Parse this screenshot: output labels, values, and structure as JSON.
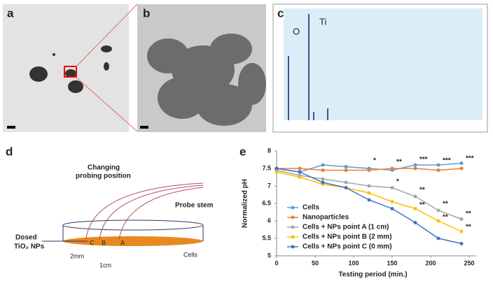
{
  "panels": {
    "a": {
      "label": "a"
    },
    "b": {
      "label": "b"
    },
    "c": {
      "label": "c",
      "peaks": [
        "O",
        "Ti"
      ]
    },
    "d": {
      "label": "d",
      "texts": [
        "Changing",
        "probing position",
        "Probe stem",
        "Dosed",
        "TiO₂ NPs",
        "C",
        "B",
        "A",
        "2mm",
        "1cm",
        "Cells"
      ]
    }
  },
  "chart_data": {
    "type": "line",
    "label": "e",
    "x_label": "Testing period (min.)",
    "y_label": "Normalized pH",
    "x": [
      0,
      30,
      60,
      90,
      120,
      150,
      180,
      210,
      240
    ],
    "xlim": [
      0,
      250
    ],
    "xticks": [
      0,
      50,
      100,
      150,
      200,
      250
    ],
    "ylim": [
      5,
      8
    ],
    "yticks": [
      5,
      5.5,
      6,
      6.5,
      7,
      7.5,
      8
    ],
    "legend": "lower left",
    "series": [
      {
        "name": "Cells",
        "color": "#5b9bd5",
        "values": [
          7.5,
          7.4,
          7.6,
          7.55,
          7.5,
          7.45,
          7.6,
          7.6,
          7.65
        ]
      },
      {
        "name": "Nanoparticles",
        "color": "#ed7d31",
        "values": [
          7.5,
          7.5,
          7.45,
          7.45,
          7.45,
          7.5,
          7.5,
          7.45,
          7.5
        ]
      },
      {
        "name": "Cells + NPs point A (1 cm)",
        "color": "#a5a5a5",
        "values": [
          7.45,
          7.3,
          7.2,
          7.1,
          7.0,
          6.95,
          6.7,
          6.3,
          6.05
        ]
      },
      {
        "name": "Cells + NPs point B (2 mm)",
        "color": "#ffc000",
        "values": [
          7.4,
          7.25,
          7.05,
          6.95,
          6.8,
          6.55,
          6.35,
          6.0,
          5.7
        ]
      },
      {
        "name": "Cells + NPs point C (0 mm)",
        "color": "#4472c4",
        "values": [
          7.5,
          7.4,
          7.1,
          6.95,
          6.6,
          6.35,
          5.95,
          5.5,
          5.35
        ]
      }
    ],
    "annotations": [
      {
        "text": "*",
        "x": 120,
        "y": 7.72
      },
      {
        "text": "**",
        "x": 150,
        "y": 7.68
      },
      {
        "text": "***",
        "x": 180,
        "y": 7.75
      },
      {
        "text": "***",
        "x": 210,
        "y": 7.72
      },
      {
        "text": "***",
        "x": 240,
        "y": 7.78
      },
      {
        "text": "*",
        "x": 150,
        "y": 7.12
      },
      {
        "text": "**",
        "x": 180,
        "y": 6.88
      },
      {
        "text": "**",
        "x": 210,
        "y": 6.48
      },
      {
        "text": "**",
        "x": 240,
        "y": 6.2
      },
      {
        "text": "**",
        "x": 180,
        "y": 6.45
      },
      {
        "text": "**",
        "x": 210,
        "y": 6.1
      },
      {
        "text": "**",
        "x": 240,
        "y": 5.82
      }
    ]
  }
}
